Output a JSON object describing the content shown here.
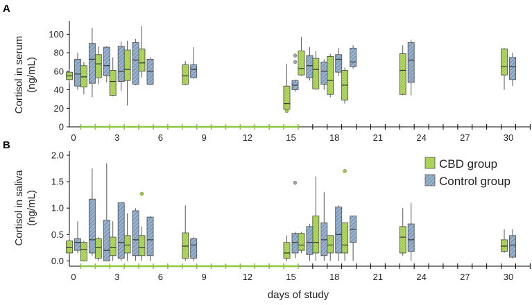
{
  "colors": {
    "cbd": "#9ccc3c",
    "control": "#98b2cf",
    "line": "#555555",
    "outlier_cbd": "#9ccc3c",
    "outlier_control": "#9aa3ad",
    "treatment_bar": "#8dc63f"
  },
  "legend": {
    "cbd": "CBD group",
    "control": "Control group"
  },
  "shared_xlabel": "days of study",
  "chart_data": [
    {
      "panel": "A",
      "type": "box",
      "ylabel": [
        "Cortisol in serum",
        "(ng/mL)"
      ],
      "xlabel": "",
      "ylim": [
        0,
        110
      ],
      "yticks": [
        "0",
        "20",
        "40",
        "60",
        "80",
        "100"
      ],
      "xlim": [
        -0.5,
        31.5
      ],
      "xticks": [
        "0",
        "3",
        "6",
        "9",
        "12",
        "15",
        "18",
        "21",
        "24",
        "27",
        "30"
      ],
      "treatment_days": [
        0.5,
        15.5
      ],
      "series": [
        {
          "name": "CBD group",
          "boxes": [
            {
              "day": 0,
              "min": 47,
              "q1": 51,
              "median": 55,
              "q3": 59,
              "max": 62
            },
            {
              "day": 1,
              "min": 35,
              "q1": 43,
              "median": 54,
              "q3": 66,
              "max": 70
            },
            {
              "day": 2,
              "min": 46,
              "q1": 53,
              "median": 68,
              "q3": 78,
              "max": 87
            },
            {
              "day": 3,
              "min": 33,
              "q1": 34,
              "median": 49,
              "q3": 61,
              "max": 75
            },
            {
              "day": 4,
              "min": 23,
              "q1": 50,
              "median": 62,
              "q3": 83,
              "max": 93
            },
            {
              "day": 5,
              "min": 53,
              "q1": 60,
              "median": 69,
              "q3": 84,
              "max": 109
            },
            {
              "day": 8,
              "min": 45,
              "q1": 46,
              "median": 55,
              "q3": 67,
              "max": 71
            },
            {
              "day": 15,
              "min": 18,
              "q1": 19,
              "median": 25,
              "q3": 44,
              "max": 68,
              "outliers": [
                17
              ]
            },
            {
              "day": 16,
              "min": 55,
              "q1": 56,
              "median": 63,
              "q3": 82,
              "max": 97
            },
            {
              "day": 17,
              "min": 40,
              "q1": 41,
              "median": 62,
              "q3": 74,
              "max": 82
            },
            {
              "day": 18,
              "min": 32,
              "q1": 35,
              "median": 50,
              "q3": 76,
              "max": 79
            },
            {
              "day": 19,
              "min": 25,
              "q1": 29,
              "median": 45,
              "q3": 61,
              "max": 64
            },
            {
              "day": 23,
              "min": 34,
              "q1": 35,
              "median": 61,
              "q3": 79,
              "max": 88
            },
            {
              "day": 30,
              "min": 40,
              "q1": 56,
              "median": 65,
              "q3": 84,
              "max": 85
            }
          ]
        },
        {
          "name": "Control group",
          "boxes": [
            {
              "day": 0,
              "min": 40,
              "q1": 44,
              "median": 57,
              "q3": 73,
              "max": 80
            },
            {
              "day": 1,
              "min": 32,
              "q1": 47,
              "median": 73,
              "q3": 90,
              "max": 107
            },
            {
              "day": 2,
              "min": 48,
              "q1": 55,
              "median": 66,
              "q3": 86,
              "max": 87
            },
            {
              "day": 3,
              "min": 39,
              "q1": 49,
              "median": 60,
              "q3": 87,
              "max": 92
            },
            {
              "day": 4,
              "min": 45,
              "q1": 46,
              "median": 72,
              "q3": 91,
              "max": 95
            },
            {
              "day": 5,
              "min": 45,
              "q1": 46,
              "median": 60,
              "q3": 73,
              "max": 75
            },
            {
              "day": 8,
              "min": 52,
              "q1": 53,
              "median": 62,
              "q3": 67,
              "max": 86
            },
            {
              "day": 15,
              "min": 38,
              "q1": 40,
              "median": 45,
              "q3": 50,
              "max": 51,
              "outliers": [
                70,
                77
              ]
            },
            {
              "day": 16,
              "min": 50,
              "q1": 53,
              "median": 66,
              "q3": 77,
              "max": 86
            },
            {
              "day": 17,
              "min": 40,
              "q1": 46,
              "median": 60,
              "q3": 70,
              "max": 73
            },
            {
              "day": 18,
              "min": 55,
              "q1": 59,
              "median": 73,
              "q3": 78,
              "max": 85
            },
            {
              "day": 19,
              "min": 63,
              "q1": 65,
              "median": 70,
              "q3": 85,
              "max": 88
            },
            {
              "day": 23,
              "min": 34,
              "q1": 48,
              "median": 72,
              "q3": 91,
              "max": 94
            },
            {
              "day": 30,
              "min": 44,
              "q1": 51,
              "median": 65,
              "q3": 75,
              "max": 80
            }
          ]
        }
      ]
    },
    {
      "panel": "B",
      "type": "box",
      "ylabel": [
        "Cortisol in saliva",
        "(ng/mL)"
      ],
      "xlabel": "days of study",
      "ylim": [
        -0.1,
        2.0
      ],
      "yticks": [
        "0.0",
        "0.5",
        "1.0",
        "1.5",
        "2.0"
      ],
      "xlim": [
        -0.5,
        31.5
      ],
      "xticks": [
        "0",
        "3",
        "6",
        "9",
        "12",
        "15",
        "18",
        "21",
        "24",
        "27",
        "30"
      ],
      "treatment_days": [
        0.5,
        15.5
      ],
      "series": [
        {
          "name": "CBD group",
          "boxes": [
            {
              "day": 0,
              "min": 0.12,
              "q1": 0.15,
              "median": 0.25,
              "q3": 0.38,
              "max": 0.52
            },
            {
              "day": 1,
              "min": 0.0,
              "q1": 0.0,
              "median": 0.22,
              "q3": 0.35,
              "max": 0.38
            },
            {
              "day": 2,
              "min": 0.0,
              "q1": 0.05,
              "median": 0.25,
              "q3": 0.42,
              "max": 0.45
            },
            {
              "day": 3,
              "min": 0.0,
              "q1": 0.1,
              "median": 0.25,
              "q3": 0.45,
              "max": 0.75
            },
            {
              "day": 4,
              "min": 0.0,
              "q1": 0.15,
              "median": 0.3,
              "q3": 0.48,
              "max": 0.9
            },
            {
              "day": 5,
              "min": 0.0,
              "q1": 0.1,
              "median": 0.25,
              "q3": 0.48,
              "max": 0.65,
              "outliers": [
                1.27
              ]
            },
            {
              "day": 8,
              "min": 0.0,
              "q1": 0.05,
              "median": 0.28,
              "q3": 0.53,
              "max": 1.05
            },
            {
              "day": 15,
              "min": 0.0,
              "q1": 0.05,
              "median": 0.15,
              "q3": 0.35,
              "max": 0.48
            },
            {
              "day": 16,
              "min": 0.15,
              "q1": 0.2,
              "median": 0.3,
              "q3": 0.52,
              "max": 0.55
            },
            {
              "day": 17,
              "min": 0.0,
              "q1": 0.15,
              "median": 0.35,
              "q3": 0.85,
              "max": 1.6
            },
            {
              "day": 18,
              "min": 0.0,
              "q1": 0.15,
              "median": 0.3,
              "q3": 0.48,
              "max": 0.48
            },
            {
              "day": 19,
              "min": 0.0,
              "q1": 0.15,
              "median": 0.3,
              "q3": 0.72,
              "max": 0.72,
              "outliers": [
                1.7
              ]
            },
            {
              "day": 23,
              "min": 0.1,
              "q1": 0.15,
              "median": 0.45,
              "q3": 0.65,
              "max": 1.0
            },
            {
              "day": 30,
              "min": 0.15,
              "q1": 0.18,
              "median": 0.28,
              "q3": 0.4,
              "max": 0.6
            }
          ]
        },
        {
          "name": "Control group",
          "boxes": [
            {
              "day": 0,
              "min": 0.15,
              "q1": 0.2,
              "median": 0.35,
              "q3": 0.42,
              "max": 0.75
            },
            {
              "day": 1,
              "min": 0.1,
              "q1": 0.15,
              "median": 0.4,
              "q3": 1.17,
              "max": 1.75
            },
            {
              "day": 2,
              "min": 0.0,
              "q1": 0.0,
              "median": 0.2,
              "q3": 0.77,
              "max": 1.85
            },
            {
              "day": 3,
              "min": 0.0,
              "q1": 0.05,
              "median": 0.35,
              "q3": 1.1,
              "max": 1.1
            },
            {
              "day": 4,
              "min": 0.0,
              "q1": 0.1,
              "median": 0.4,
              "q3": 0.95,
              "max": 1.0
            },
            {
              "day": 5,
              "min": 0.0,
              "q1": 0.1,
              "median": 0.4,
              "q3": 0.83,
              "max": 0.85
            },
            {
              "day": 8,
              "min": 0.0,
              "q1": 0.05,
              "median": 0.3,
              "q3": 0.42,
              "max": 0.45
            },
            {
              "day": 15,
              "min": 0.05,
              "q1": 0.15,
              "median": 0.35,
              "q3": 0.52,
              "max": 0.55,
              "outliers": [
                1.48
              ]
            },
            {
              "day": 16,
              "min": 0.0,
              "q1": 0.12,
              "median": 0.35,
              "q3": 0.65,
              "max": 0.7
            },
            {
              "day": 17,
              "min": 0.0,
              "q1": 0.1,
              "median": 0.4,
              "q3": 0.72,
              "max": 1.3
            },
            {
              "day": 18,
              "min": 0.0,
              "q1": 0.15,
              "median": 0.5,
              "q3": 1.02,
              "max": 1.05
            },
            {
              "day": 19,
              "min": 0.0,
              "q1": 0.35,
              "median": 0.6,
              "q3": 0.85,
              "max": 0.85
            },
            {
              "day": 23,
              "min": 0.0,
              "q1": 0.18,
              "median": 0.4,
              "q3": 0.7,
              "max": 1.1
            },
            {
              "day": 30,
              "min": 0.05,
              "q1": 0.07,
              "median": 0.3,
              "q3": 0.48,
              "max": 0.6
            }
          ]
        }
      ]
    }
  ]
}
